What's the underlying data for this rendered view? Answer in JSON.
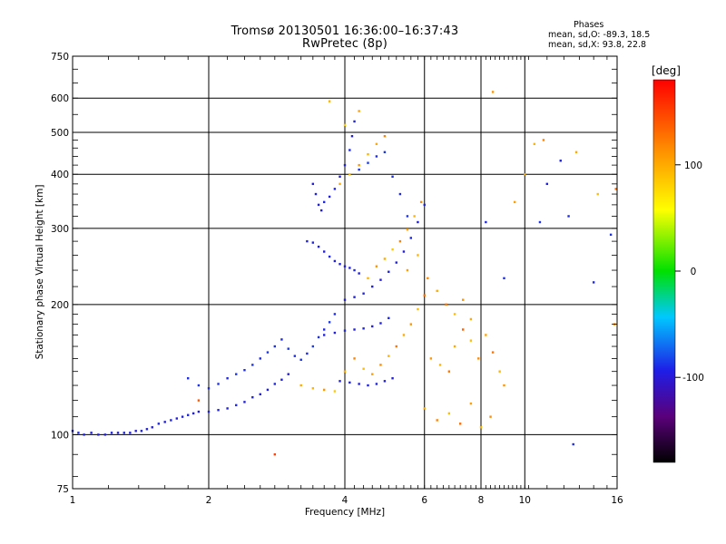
{
  "title": {
    "line1": "Tromsø 20130501 16:36:00–16:37:43",
    "line2": "RwPretec (8p)"
  },
  "phases_box": {
    "heading": "Phases",
    "o_stats": "mean, sd,O: -89.3, 18.5",
    "x_stats": "mean, sd,X:  93.8, 22.8"
  },
  "colorbar": {
    "label": "[deg]",
    "range": [
      -180,
      180
    ],
    "ticks": [
      {
        "value": 100,
        "label": "100"
      },
      {
        "value": 0,
        "label": "0"
      },
      {
        "value": -100,
        "label": "-100"
      }
    ]
  },
  "chart_data": {
    "type": "scatter",
    "xlabel": "Frequency [MHz]",
    "ylabel": "Stationary phase Virtual Height [km]",
    "xscale": "log",
    "yscale": "log",
    "xlim": [
      1,
      16
    ],
    "ylim": [
      75,
      750
    ],
    "xticks": [
      {
        "value": 1,
        "label": "1"
      },
      {
        "value": 2,
        "label": "2"
      },
      {
        "value": 4,
        "label": "4"
      },
      {
        "value": 6,
        "label": "6"
      },
      {
        "value": 8,
        "label": "8"
      },
      {
        "value": 10,
        "label": "10"
      },
      {
        "value": 16,
        "label": "16"
      }
    ],
    "yticks": [
      {
        "value": 75,
        "label": "75"
      },
      {
        "value": 100,
        "label": "100"
      },
      {
        "value": 200,
        "label": "200"
      },
      {
        "value": 300,
        "label": "300"
      },
      {
        "value": 400,
        "label": "400"
      },
      {
        "value": 500,
        "label": "500"
      },
      {
        "value": 600,
        "label": "600"
      },
      {
        "value": 750,
        "label": "750"
      }
    ],
    "grid": true,
    "color_encoding": "phase [deg]",
    "series": [
      {
        "mode": "O",
        "points": [
          [
            1.0,
            102,
            -95
          ],
          [
            1.03,
            101,
            -92
          ],
          [
            1.06,
            100,
            -94
          ],
          [
            1.1,
            101,
            -96
          ],
          [
            1.14,
            100,
            -97
          ],
          [
            1.18,
            100,
            -95
          ],
          [
            1.22,
            101,
            -93
          ],
          [
            1.26,
            101,
            -96
          ],
          [
            1.3,
            101,
            -92
          ],
          [
            1.34,
            101,
            -95
          ],
          [
            1.38,
            102,
            -97
          ],
          [
            1.42,
            102,
            -93
          ],
          [
            1.46,
            103,
            -94
          ],
          [
            1.5,
            104,
            -96
          ],
          [
            1.55,
            106,
            -92
          ],
          [
            1.6,
            107,
            -95
          ],
          [
            1.65,
            108,
            -93
          ],
          [
            1.7,
            109,
            -96
          ],
          [
            1.75,
            110,
            -94
          ],
          [
            1.8,
            111,
            -92
          ],
          [
            1.85,
            112,
            -95
          ],
          [
            1.9,
            113,
            -97
          ],
          [
            2.0,
            113,
            -93
          ],
          [
            2.1,
            114,
            -94
          ],
          [
            2.2,
            115,
            -96
          ],
          [
            2.3,
            117,
            -92
          ],
          [
            2.4,
            119,
            -95
          ],
          [
            2.5,
            122,
            -93
          ],
          [
            2.6,
            124,
            -96
          ],
          [
            2.7,
            127,
            -94
          ],
          [
            2.8,
            131,
            -92
          ],
          [
            2.9,
            134,
            -95
          ],
          [
            3.0,
            138,
            -97
          ],
          [
            1.8,
            135,
            -90
          ],
          [
            1.9,
            130,
            -88
          ],
          [
            2.0,
            128,
            -91
          ],
          [
            2.1,
            131,
            -89
          ],
          [
            2.2,
            135,
            -92
          ],
          [
            2.3,
            138,
            -87
          ],
          [
            2.4,
            141,
            -90
          ],
          [
            2.5,
            145,
            -88
          ],
          [
            2.6,
            150,
            -91
          ],
          [
            2.7,
            155,
            -86
          ],
          [
            2.8,
            160,
            -89
          ],
          [
            2.9,
            166,
            -92
          ],
          [
            3.0,
            158,
            -87
          ],
          [
            3.1,
            152,
            -90
          ],
          [
            3.2,
            149,
            -88
          ],
          [
            3.3,
            154,
            -91
          ],
          [
            3.4,
            160,
            -86
          ],
          [
            3.5,
            168,
            -89
          ],
          [
            3.6,
            175,
            -92
          ],
          [
            3.7,
            182,
            -87
          ],
          [
            3.8,
            190,
            -90
          ],
          [
            3.3,
            280,
            -95
          ],
          [
            3.4,
            278,
            -93
          ],
          [
            3.5,
            272,
            -94
          ],
          [
            3.6,
            265,
            -96
          ],
          [
            3.7,
            258,
            -92
          ],
          [
            3.8,
            252,
            -95
          ],
          [
            3.9,
            248,
            -93
          ],
          [
            4.0,
            245,
            -96
          ],
          [
            4.1,
            243,
            -94
          ],
          [
            4.2,
            240,
            -92
          ],
          [
            4.3,
            236,
            -95
          ],
          [
            3.4,
            380,
            -97
          ],
          [
            3.45,
            360,
            -93
          ],
          [
            3.5,
            340,
            -94
          ],
          [
            3.55,
            330,
            -96
          ],
          [
            3.6,
            345,
            -92
          ],
          [
            3.7,
            355,
            -95
          ],
          [
            3.8,
            370,
            -93
          ],
          [
            3.9,
            395,
            -96
          ],
          [
            4.0,
            420,
            -94
          ],
          [
            4.1,
            455,
            -92
          ],
          [
            4.15,
            490,
            -95
          ],
          [
            4.2,
            530,
            -93
          ],
          [
            4.0,
            205,
            -96
          ],
          [
            4.2,
            208,
            -94
          ],
          [
            4.4,
            212,
            -92
          ],
          [
            4.6,
            220,
            -95
          ],
          [
            4.8,
            228,
            -97
          ],
          [
            5.0,
            238,
            -93
          ],
          [
            5.2,
            250,
            -94
          ],
          [
            5.4,
            265,
            -96
          ],
          [
            5.6,
            285,
            -92
          ],
          [
            5.8,
            310,
            -95
          ],
          [
            6.0,
            340,
            -93
          ],
          [
            3.6,
            170,
            -94
          ],
          [
            3.8,
            172,
            -96
          ],
          [
            4.0,
            174,
            -92
          ],
          [
            4.2,
            175,
            -95
          ],
          [
            4.4,
            176,
            -93
          ],
          [
            4.6,
            178,
            -96
          ],
          [
            4.8,
            181,
            -94
          ],
          [
            5.0,
            186,
            -92
          ],
          [
            3.9,
            133,
            -95
          ],
          [
            4.1,
            132,
            -93
          ],
          [
            4.3,
            131,
            -96
          ],
          [
            4.5,
            130,
            -94
          ],
          [
            4.7,
            131,
            -92
          ],
          [
            4.9,
            133,
            -95
          ],
          [
            5.1,
            135,
            -97
          ],
          [
            4.3,
            410,
            -88
          ],
          [
            4.5,
            425,
            -86
          ],
          [
            4.7,
            440,
            -90
          ],
          [
            4.9,
            450,
            -87
          ],
          [
            5.1,
            395,
            -89
          ],
          [
            5.3,
            360,
            -91
          ],
          [
            5.5,
            320,
            -88
          ],
          [
            9.0,
            230,
            -90
          ],
          [
            8.2,
            310,
            -92
          ],
          [
            10.8,
            310,
            -88
          ],
          [
            12.5,
            320,
            -91
          ],
          [
            12.0,
            430,
            -93
          ],
          [
            12.8,
            95,
            -90
          ],
          [
            14.2,
            225,
            -92
          ],
          [
            15.5,
            290,
            -88
          ],
          [
            11.2,
            380,
            -94
          ]
        ]
      },
      {
        "mode": "X",
        "points": [
          [
            3.2,
            130,
            100
          ],
          [
            3.4,
            128,
            95
          ],
          [
            3.6,
            127,
            110
          ],
          [
            3.8,
            126,
            85
          ],
          [
            4.0,
            140,
            100
          ],
          [
            4.2,
            150,
            120
          ],
          [
            4.4,
            142,
            90
          ],
          [
            4.6,
            138,
            105
          ],
          [
            4.8,
            145,
            115
          ],
          [
            5.0,
            152,
            95
          ],
          [
            5.2,
            160,
            125
          ],
          [
            5.4,
            170,
            100
          ],
          [
            5.6,
            180,
            110
          ],
          [
            5.8,
            195,
            90
          ],
          [
            6.0,
            210,
            130
          ],
          [
            4.5,
            230,
            95
          ],
          [
            4.7,
            245,
            110
          ],
          [
            4.9,
            255,
            100
          ],
          [
            5.1,
            268,
            85
          ],
          [
            5.3,
            280,
            120
          ],
          [
            5.5,
            298,
            105
          ],
          [
            5.7,
            320,
            95
          ],
          [
            5.9,
            345,
            115
          ],
          [
            3.9,
            380,
            100
          ],
          [
            4.1,
            400,
            90
          ],
          [
            4.3,
            420,
            110
          ],
          [
            4.5,
            445,
            95
          ],
          [
            4.7,
            470,
            100
          ],
          [
            4.9,
            490,
            120
          ],
          [
            4.0,
            520,
            85
          ],
          [
            4.3,
            560,
            105
          ],
          [
            3.7,
            590,
            95
          ],
          [
            6.2,
            150,
            110
          ],
          [
            6.5,
            145,
            95
          ],
          [
            6.8,
            140,
            125
          ],
          [
            7.0,
            160,
            100
          ],
          [
            7.3,
            175,
            135
          ],
          [
            7.6,
            165,
            90
          ],
          [
            7.9,
            150,
            115
          ],
          [
            8.2,
            170,
            105
          ],
          [
            8.5,
            155,
            125
          ],
          [
            8.8,
            140,
            95
          ],
          [
            9.0,
            130,
            110
          ],
          [
            6.0,
            115,
            100
          ],
          [
            6.4,
            108,
            120
          ],
          [
            6.8,
            112,
            90
          ],
          [
            7.2,
            106,
            130
          ],
          [
            7.6,
            118,
            105
          ],
          [
            8.0,
            104,
            95
          ],
          [
            8.4,
            110,
            115
          ],
          [
            5.5,
            240,
            105
          ],
          [
            5.8,
            260,
            95
          ],
          [
            6.1,
            230,
            115
          ],
          [
            6.4,
            215,
            100
          ],
          [
            6.7,
            200,
            125
          ],
          [
            7.0,
            190,
            90
          ],
          [
            7.3,
            205,
            110
          ],
          [
            7.6,
            185,
            100
          ],
          [
            8.5,
            620,
            110
          ],
          [
            10.0,
            400,
            100
          ],
          [
            10.5,
            470,
            95
          ],
          [
            11.0,
            480,
            120
          ],
          [
            9.5,
            345,
            105
          ],
          [
            13.0,
            450,
            100
          ],
          [
            14.5,
            360,
            90
          ],
          [
            15.8,
            180,
            110
          ],
          [
            15.9,
            370,
            130
          ],
          [
            2.8,
            90,
            150
          ],
          [
            1.9,
            120,
            140
          ]
        ]
      }
    ]
  }
}
